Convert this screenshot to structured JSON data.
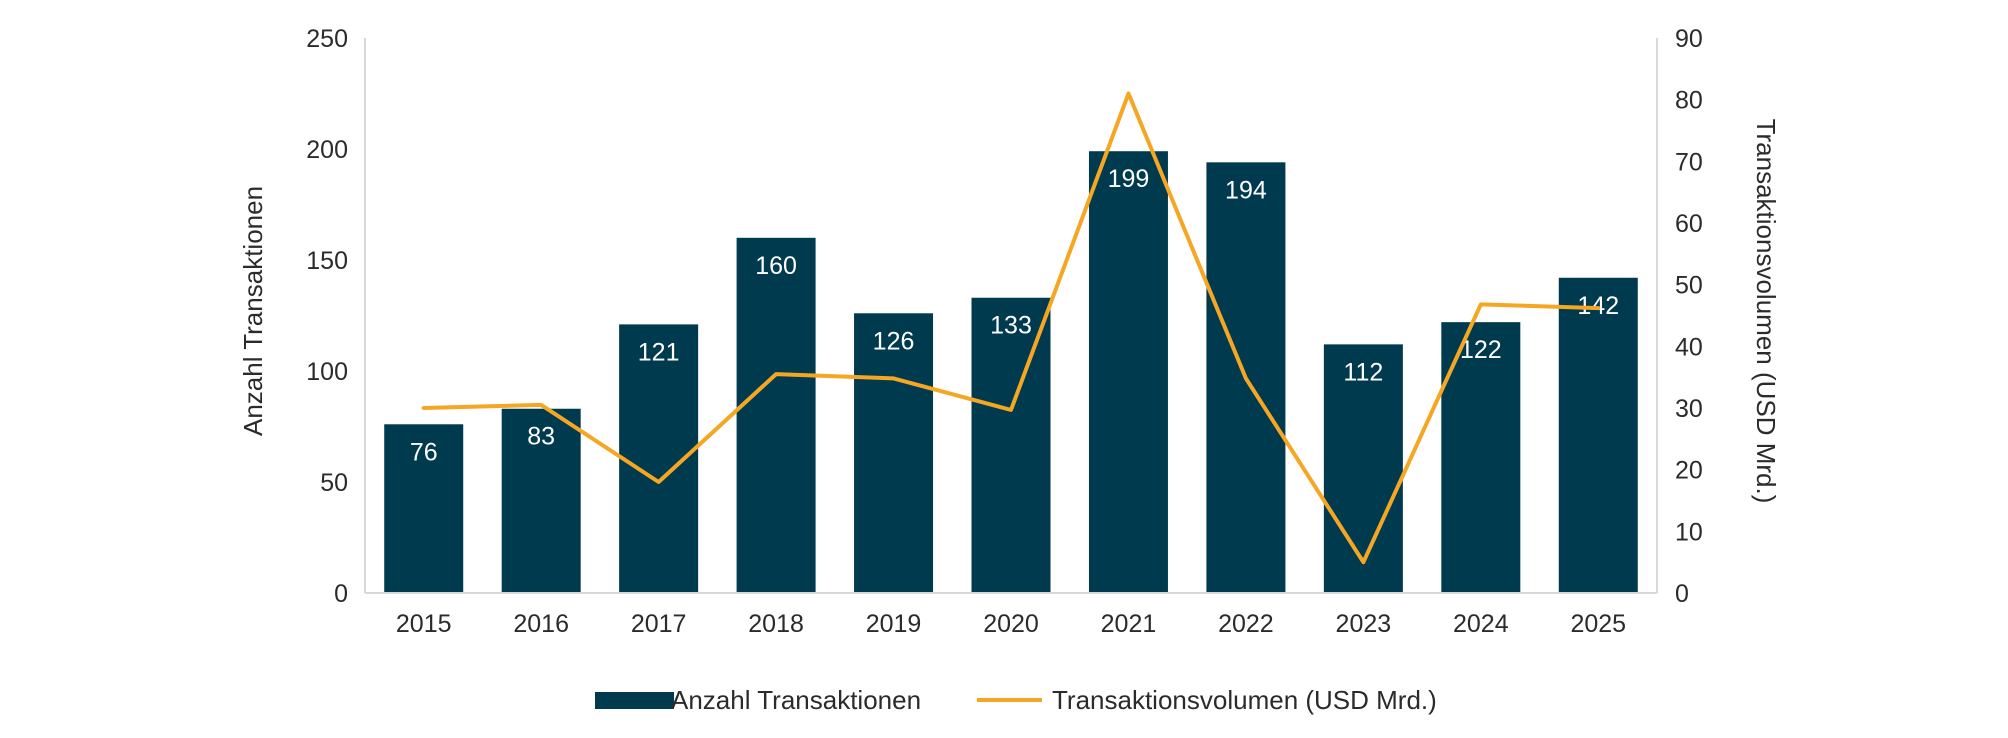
{
  "chart_data": {
    "type": "bar",
    "categories": [
      "2015",
      "2016",
      "2017",
      "2018",
      "2019",
      "2020",
      "2021",
      "2022",
      "2023",
      "2024",
      "2025"
    ],
    "series": [
      {
        "name": "Anzahl Transaktionen",
        "kind": "bar",
        "axis": "left",
        "color": "#003a4f",
        "values": [
          76,
          83,
          121,
          160,
          126,
          133,
          199,
          194,
          112,
          122,
          142
        ],
        "data_labels": [
          "76",
          "83",
          "121",
          "160",
          "126",
          "133",
          "199",
          "194",
          "112",
          "122",
          "142"
        ]
      },
      {
        "name": "Transaktionsvolumen (USD Mrd.)",
        "kind": "line",
        "axis": "right",
        "color": "#f5a623",
        "values": [
          30,
          30.5,
          18,
          35.5,
          34.8,
          29.7,
          81,
          34.8,
          5,
          46.8,
          46.2
        ]
      }
    ],
    "y_left": {
      "label": "Anzahl Transaktionen",
      "lim": [
        0,
        250
      ],
      "ticks": [
        "0",
        "50",
        "100",
        "150",
        "200",
        "250"
      ]
    },
    "y_right": {
      "label": "Transaktionsvolumen (USD Mrd.)",
      "lim": [
        0,
        90
      ],
      "ticks": [
        "0",
        "10",
        "20",
        "30",
        "40",
        "50",
        "60",
        "70",
        "80",
        "90"
      ]
    },
    "xlabel": "",
    "grid": false,
    "legend": "bottom-center",
    "legend_labels": [
      "Anzahl Transaktionen",
      "Transaktionsvolumen (USD Mrd.)"
    ],
    "axis_color": "#d9d9d9"
  }
}
